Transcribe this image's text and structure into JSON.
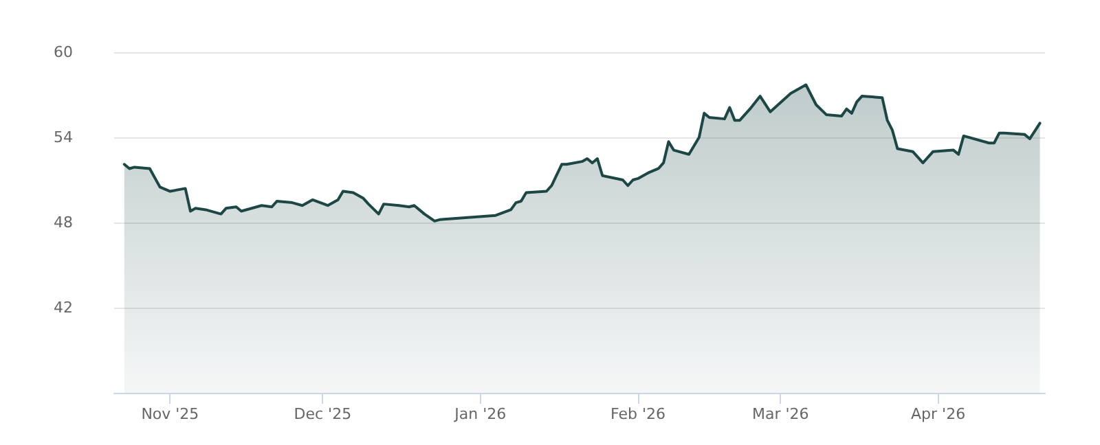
{
  "chart_data": {
    "type": "area",
    "x": [
      "2025-10-23",
      "2025-10-24",
      "2025-10-25",
      "2025-10-28",
      "2025-10-30",
      "2025-11-01",
      "2025-11-04",
      "2025-11-05",
      "2025-11-06",
      "2025-11-08",
      "2025-11-11",
      "2025-11-12",
      "2025-11-14",
      "2025-11-15",
      "2025-11-19",
      "2025-11-21",
      "2025-11-22",
      "2025-11-25",
      "2025-11-27",
      "2025-11-29",
      "2025-12-02",
      "2025-12-04",
      "2025-12-05",
      "2025-12-07",
      "2025-12-09",
      "2025-12-10",
      "2025-12-12",
      "2025-12-13",
      "2025-12-16",
      "2025-12-18",
      "2025-12-19",
      "2025-12-21",
      "2025-12-23",
      "2025-12-24",
      "2026-01-04",
      "2026-01-07",
      "2026-01-08",
      "2026-01-09",
      "2026-01-10",
      "2026-01-14",
      "2026-01-15",
      "2026-01-17",
      "2026-01-18",
      "2026-01-21",
      "2026-01-22",
      "2026-01-23",
      "2026-01-24",
      "2026-01-25",
      "2026-01-29",
      "2026-01-30",
      "2026-01-31",
      "2026-02-01",
      "2026-02-03",
      "2026-02-05",
      "2026-02-06",
      "2026-02-07",
      "2026-02-08",
      "2026-02-11",
      "2026-02-13",
      "2026-02-14",
      "2026-02-15",
      "2026-02-18",
      "2026-02-19",
      "2026-02-20",
      "2026-02-21",
      "2026-02-23",
      "2026-02-25",
      "2026-02-27",
      "2026-03-03",
      "2026-03-06",
      "2026-03-08",
      "2026-03-10",
      "2026-03-13",
      "2026-03-14",
      "2026-03-15",
      "2026-03-16",
      "2026-03-17",
      "2026-03-21",
      "2026-03-22",
      "2026-03-23",
      "2026-03-24",
      "2026-03-27",
      "2026-03-29",
      "2026-03-31",
      "2026-04-04",
      "2026-04-05",
      "2026-04-06",
      "2026-04-11",
      "2026-04-12",
      "2026-04-13",
      "2026-04-14",
      "2026-04-18",
      "2026-04-19",
      "2026-04-21"
    ],
    "series": [
      {
        "color": "#1b4745",
        "values": [
          52.1,
          51.8,
          51.9,
          51.8,
          50.5,
          50.2,
          50.4,
          48.8,
          49.0,
          48.9,
          48.6,
          49.0,
          49.1,
          48.8,
          49.2,
          49.1,
          49.5,
          49.4,
          49.2,
          49.6,
          49.2,
          49.6,
          50.2,
          50.1,
          49.7,
          49.3,
          48.6,
          49.3,
          49.2,
          49.1,
          49.2,
          48.6,
          48.1,
          48.2,
          48.5,
          48.9,
          49.4,
          49.5,
          50.1,
          50.2,
          50.6,
          52.1,
          52.1,
          52.3,
          52.5,
          52.2,
          52.5,
          51.3,
          51.0,
          50.6,
          51.0,
          51.1,
          51.5,
          51.8,
          52.2,
          53.7,
          53.1,
          52.8,
          54.0,
          55.7,
          55.4,
          55.3,
          56.1,
          55.2,
          55.2,
          56.0,
          56.9,
          55.8,
          57.1,
          57.7,
          56.3,
          55.6,
          55.5,
          56.0,
          55.7,
          56.5,
          56.9,
          56.8,
          55.2,
          54.5,
          53.2,
          53.0,
          52.2,
          53.0,
          53.1,
          52.8,
          54.1,
          53.6,
          53.6,
          54.3,
          54.3,
          54.2,
          53.9,
          55.0
        ]
      }
    ],
    "xlim": [
      "2025-10-21",
      "2026-04-22"
    ],
    "xticks": [
      {
        "value": "2025-11-01",
        "label": "Nov '25"
      },
      {
        "value": "2025-12-01",
        "label": "Dec '25"
      },
      {
        "value": "2026-01-01",
        "label": "Jan '26"
      },
      {
        "value": "2026-02-01",
        "label": "Feb '26"
      },
      {
        "value": "2026-03-01",
        "label": "Mar '26"
      },
      {
        "value": "2026-04-01",
        "label": "Apr '26"
      }
    ],
    "ylim": [
      36,
      60
    ],
    "yticks": [
      42,
      48,
      54,
      60
    ],
    "grid": "y",
    "marker": "none",
    "line_style": "solid"
  }
}
